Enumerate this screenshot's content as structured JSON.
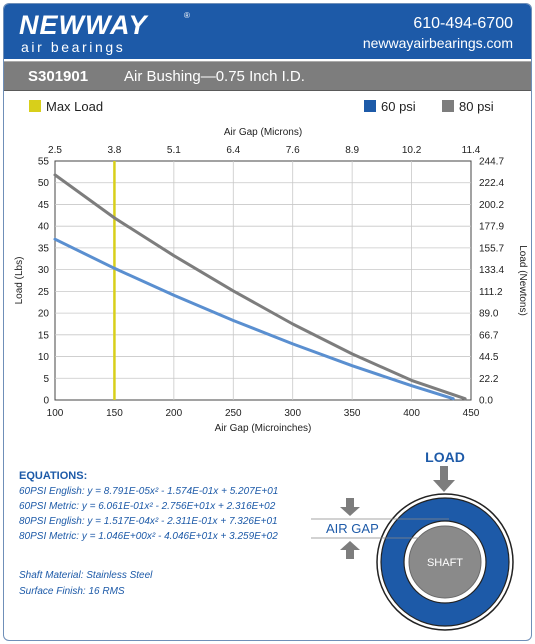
{
  "header": {
    "logo": "NEWWAY",
    "logo_mark": "®",
    "logo_sub": "air bearings",
    "phone": "610-494-6700",
    "website": "newwayairbearings.com"
  },
  "titlebar": {
    "part_number": "S301901",
    "description": "Air Bushing—0.75 Inch I.D."
  },
  "legend": {
    "max_load": "Max Load",
    "psi60": "60 psi",
    "psi80": "80 psi"
  },
  "colors": {
    "brand": "#1d5aa8",
    "series60": "#5a8fd0",
    "series80": "#7d7d7d",
    "max_load": "#d8cf1a"
  },
  "chart_data": {
    "type": "line",
    "xlabel": "Air Gap (Microinches)",
    "x2label": "Air Gap (Microns)",
    "ylabel": "Load (Lbs)",
    "y2label": "Load (Newtons)",
    "xlim": [
      100,
      450
    ],
    "ylim": [
      0,
      55
    ],
    "x_ticks": [
      "100",
      "150",
      "200",
      "250",
      "300",
      "350",
      "400",
      "450"
    ],
    "y_ticks": [
      "0",
      "5",
      "10",
      "15",
      "20",
      "25",
      "30",
      "35",
      "40",
      "45",
      "50",
      "55"
    ],
    "x2_ticks": [
      "2.5",
      "3.8",
      "5.1",
      "6.4",
      "7.6",
      "8.9",
      "10.2",
      "11.4"
    ],
    "y2_ticks": [
      "0.0",
      "22.2",
      "44.5",
      "66.7",
      "89.0",
      "111.2",
      "133.4",
      "155.7",
      "177.9",
      "200.2",
      "222.4",
      "244.7"
    ],
    "max_load_x": 150,
    "grid": true,
    "series": [
      {
        "name": "60 psi",
        "x": [
          100,
          150,
          200,
          250,
          300,
          350,
          400,
          435
        ],
        "y": [
          37,
          30.3,
          24.1,
          18.3,
          12.9,
          7.9,
          3.3,
          0.3
        ]
      },
      {
        "name": "80 psi",
        "x": [
          100,
          150,
          200,
          250,
          300,
          350,
          400,
          445
        ],
        "y": [
          51.8,
          41.9,
          33.2,
          25.1,
          17.5,
          10.6,
          4.5,
          0.3
        ]
      }
    ]
  },
  "equations": {
    "title": "EQUATIONS:",
    "lines": [
      {
        "label": "60PSI English:",
        "text": "y = 8.791E-05x² - 1.574E-01x + 5.207E+01"
      },
      {
        "label": "60PSI Metric:",
        "text": "y = 6.061E-01x² - 2.756E+01x + 2.316E+02"
      },
      {
        "label": "80PSI English:",
        "text": "y = 1.517E-04x² - 2.311E-01x + 7.326E+01"
      },
      {
        "label": "80PSI Metric:",
        "text": "y = 1.046E+00x² - 4.046E+01x + 3.259E+02"
      }
    ]
  },
  "specs": {
    "shaft_material": "Shaft Material:  Stainless Steel",
    "surface_finish": "Surface Finish:  16 RMS"
  },
  "diagram": {
    "load_label": "LOAD",
    "air_gap_label": "AIR GAP",
    "shaft_label": "SHAFT"
  }
}
